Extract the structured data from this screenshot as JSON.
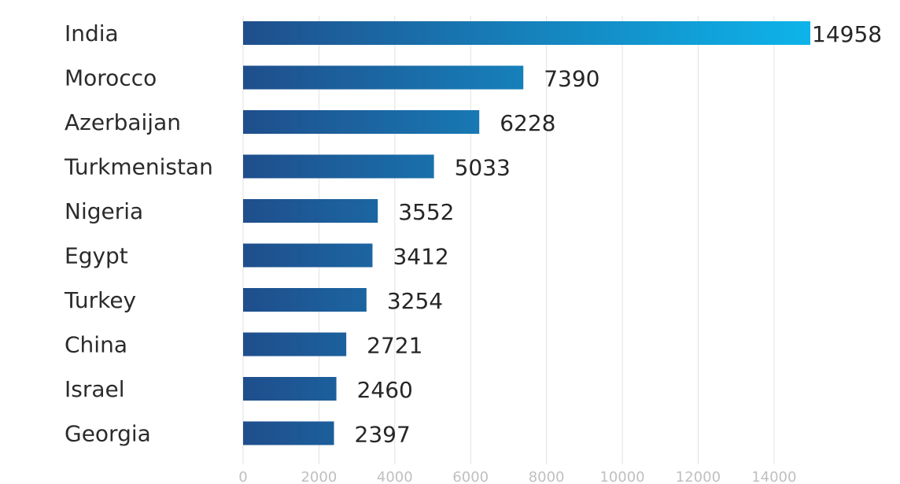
{
  "chart_data": {
    "type": "bar",
    "orientation": "horizontal",
    "title": "",
    "xlabel": "",
    "ylabel": "",
    "categories": [
      "India",
      "Morocco",
      "Azerbaijan",
      "Turkmenistan",
      "Nigeria",
      "Egypt",
      "Turkey",
      "China",
      "Israel",
      "Georgia"
    ],
    "values": [
      14958,
      7390,
      6228,
      5033,
      3552,
      3412,
      3254,
      2721,
      2460,
      2397
    ],
    "xlim": [
      0,
      16000
    ],
    "x_ticks": [
      0,
      2000,
      4000,
      6000,
      8000,
      10000,
      12000,
      14000
    ],
    "x_tick_labels": [
      "0",
      "2000",
      "4000",
      "6000",
      "8000",
      "10000",
      "12000",
      "14000"
    ],
    "grid": true,
    "legend": "none",
    "colors": {
      "bar_start": "#1f4e8c",
      "bar_end": "#0db4ea",
      "grid": "#e2e2e2",
      "tick_text": "#bfbfbf",
      "label_text": "#2b2b2b"
    }
  }
}
